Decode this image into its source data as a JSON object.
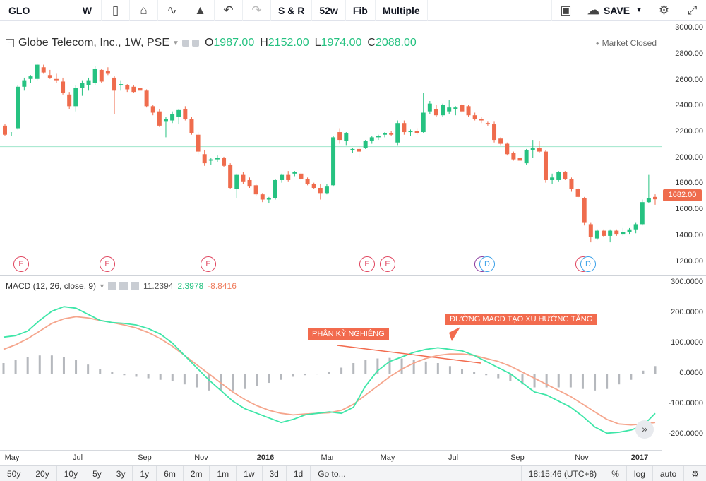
{
  "toolbar": {
    "symbol": "GLO",
    "interval": "W",
    "compare": "S & R",
    "range": "52w",
    "fib": "Fib",
    "multiple": "Multiple",
    "save": "SAVE"
  },
  "legend": {
    "title": "Globe Telecom, Inc., 1W, PSE",
    "o_label": "O",
    "o": "1987.00",
    "h_label": "H",
    "h": "2152.00",
    "l_label": "L",
    "l": "1974.00",
    "c_label": "C",
    "c": "2088.00",
    "status": "Market Closed"
  },
  "price_axis": [
    "3000.00",
    "2800.00",
    "2600.00",
    "2400.00",
    "2200.00",
    "2000.00",
    "1800.00",
    "1600.00",
    "1400.00",
    "1200.00"
  ],
  "last_price": "1682.00",
  "macd": {
    "title": "MACD (12, 26, close, 9)",
    "hist_value": "11.2394",
    "macd_value": "2.3978",
    "signal_value": "-8.8416",
    "axis": [
      "300.0000",
      "200.0000",
      "100.0000",
      "0.0000",
      "-100.0000",
      "-200.0000"
    ]
  },
  "annotations": {
    "divergence": "PHÂN KỲ NGHIÊNG",
    "uptrend": "ĐƯỜNG MACD TẠO XU HƯỚNG TĂNG"
  },
  "time_axis": [
    "May",
    "Jul",
    "Sep",
    "Nov",
    "2016",
    "Mar",
    "May",
    "Jul",
    "Sep",
    "Nov",
    "2017"
  ],
  "events": [
    "E",
    "E",
    "E",
    "E",
    "E",
    "D",
    "D",
    "E",
    "D"
  ],
  "bottom_bar": {
    "ranges": [
      "50y",
      "20y",
      "10y",
      "5y",
      "3y",
      "1y",
      "6m",
      "2m",
      "1m",
      "1w",
      "3d",
      "1d"
    ],
    "goto": "Go to...",
    "time": "18:15:46 (UTC+8)",
    "percent": "%",
    "log": "log",
    "auto": "auto"
  },
  "colors": {
    "up": "#26c281",
    "down": "#ef6c4d",
    "macd_line": "#3ee6a8",
    "signal_line": "#f5a58c",
    "histogram": "#b5b8bd"
  },
  "chart_data": {
    "type": "candlestick",
    "interval": "weekly",
    "x_range": [
      "2015-04",
      "2017-01"
    ],
    "price_ylim": [
      1100,
      3050
    ],
    "candles": [
      {
        "o": 2250,
        "h": 2260,
        "l": 2170,
        "c": 2180
      },
      {
        "o": 2190,
        "h": 2200,
        "l": 2170,
        "c": 2195
      },
      {
        "o": 2230,
        "h": 2560,
        "l": 2220,
        "c": 2550
      },
      {
        "o": 2550,
        "h": 2620,
        "l": 2520,
        "c": 2600
      },
      {
        "o": 2610,
        "h": 2640,
        "l": 2580,
        "c": 2630
      },
      {
        "o": 2610,
        "h": 2730,
        "l": 2600,
        "c": 2720
      },
      {
        "o": 2700,
        "h": 2720,
        "l": 2650,
        "c": 2660
      },
      {
        "o": 2640,
        "h": 2680,
        "l": 2610,
        "c": 2620
      },
      {
        "o": 2610,
        "h": 2650,
        "l": 2580,
        "c": 2600
      },
      {
        "o": 2590,
        "h": 2620,
        "l": 2490,
        "c": 2500
      },
      {
        "o": 2490,
        "h": 2510,
        "l": 2380,
        "c": 2400
      },
      {
        "o": 2400,
        "h": 2560,
        "l": 2360,
        "c": 2540
      },
      {
        "o": 2540,
        "h": 2600,
        "l": 2480,
        "c": 2580
      },
      {
        "o": 2560,
        "h": 2620,
        "l": 2520,
        "c": 2600
      },
      {
        "o": 2580,
        "h": 2710,
        "l": 2560,
        "c": 2690
      },
      {
        "o": 2680,
        "h": 2690,
        "l": 2580,
        "c": 2590
      },
      {
        "o": 2670,
        "h": 2700,
        "l": 2640,
        "c": 2650
      },
      {
        "o": 2620,
        "h": 2630,
        "l": 2340,
        "c": 2520
      },
      {
        "o": 2560,
        "h": 2600,
        "l": 2520,
        "c": 2570
      },
      {
        "o": 2560,
        "h": 2570,
        "l": 2510,
        "c": 2530
      },
      {
        "o": 2550,
        "h": 2560,
        "l": 2500,
        "c": 2510
      },
      {
        "o": 2540,
        "h": 2570,
        "l": 2510,
        "c": 2520
      },
      {
        "o": 2520,
        "h": 2530,
        "l": 2390,
        "c": 2400
      },
      {
        "o": 2400,
        "h": 2410,
        "l": 2330,
        "c": 2350
      },
      {
        "o": 2360,
        "h": 2380,
        "l": 2240,
        "c": 2250
      },
      {
        "o": 2280,
        "h": 2320,
        "l": 2160,
        "c": 2300
      },
      {
        "o": 2290,
        "h": 2360,
        "l": 2270,
        "c": 2340
      },
      {
        "o": 2320,
        "h": 2380,
        "l": 2260,
        "c": 2370
      },
      {
        "o": 2380,
        "h": 2400,
        "l": 2290,
        "c": 2300
      },
      {
        "o": 2300,
        "h": 2320,
        "l": 2180,
        "c": 2190
      },
      {
        "o": 2180,
        "h": 2200,
        "l": 2030,
        "c": 2050
      },
      {
        "o": 2030,
        "h": 2060,
        "l": 1940,
        "c": 1960
      },
      {
        "o": 1980,
        "h": 2000,
        "l": 1950,
        "c": 1990
      },
      {
        "o": 1990,
        "h": 2020,
        "l": 1970,
        "c": 2000
      },
      {
        "o": 2000,
        "h": 2010,
        "l": 1930,
        "c": 1940
      },
      {
        "o": 1950,
        "h": 1960,
        "l": 1760,
        "c": 1770
      },
      {
        "o": 1760,
        "h": 1880,
        "l": 1690,
        "c": 1870
      },
      {
        "o": 1870,
        "h": 1890,
        "l": 1800,
        "c": 1820
      },
      {
        "o": 1830,
        "h": 1850,
        "l": 1770,
        "c": 1780
      },
      {
        "o": 1790,
        "h": 1800,
        "l": 1710,
        "c": 1720
      },
      {
        "o": 1720,
        "h": 1730,
        "l": 1660,
        "c": 1680
      },
      {
        "o": 1680,
        "h": 1700,
        "l": 1650,
        "c": 1690
      },
      {
        "o": 1690,
        "h": 1840,
        "l": 1680,
        "c": 1830
      },
      {
        "o": 1830,
        "h": 1880,
        "l": 1810,
        "c": 1870
      },
      {
        "o": 1870,
        "h": 1900,
        "l": 1820,
        "c": 1830
      },
      {
        "o": 1880,
        "h": 1900,
        "l": 1860,
        "c": 1890
      },
      {
        "o": 1880,
        "h": 1890,
        "l": 1830,
        "c": 1840
      },
      {
        "o": 1840,
        "h": 1850,
        "l": 1790,
        "c": 1800
      },
      {
        "o": 1800,
        "h": 1810,
        "l": 1760,
        "c": 1770
      },
      {
        "o": 1770,
        "h": 1800,
        "l": 1680,
        "c": 1730
      },
      {
        "o": 1730,
        "h": 1800,
        "l": 1720,
        "c": 1780
      },
      {
        "o": 1790,
        "h": 2170,
        "l": 1780,
        "c": 2160
      },
      {
        "o": 2200,
        "h": 2230,
        "l": 2110,
        "c": 2140
      },
      {
        "o": 2130,
        "h": 2200,
        "l": 2100,
        "c": 2190
      },
      {
        "o": 2060,
        "h": 2080,
        "l": 2040,
        "c": 2070
      },
      {
        "o": 2070,
        "h": 2090,
        "l": 2000,
        "c": 2050
      },
      {
        "o": 2080,
        "h": 2140,
        "l": 2070,
        "c": 2130
      },
      {
        "o": 2130,
        "h": 2170,
        "l": 2110,
        "c": 2160
      },
      {
        "o": 2160,
        "h": 2180,
        "l": 2140,
        "c": 2170
      },
      {
        "o": 2180,
        "h": 2200,
        "l": 2160,
        "c": 2190
      },
      {
        "o": 2190,
        "h": 2210,
        "l": 2170,
        "c": 2180
      },
      {
        "o": 2120,
        "h": 2290,
        "l": 2100,
        "c": 2270
      },
      {
        "o": 2270,
        "h": 2290,
        "l": 2180,
        "c": 2200
      },
      {
        "o": 2200,
        "h": 2220,
        "l": 2170,
        "c": 2210
      },
      {
        "o": 2210,
        "h": 2230,
        "l": 2180,
        "c": 2190
      },
      {
        "o": 2200,
        "h": 2500,
        "l": 2190,
        "c": 2350
      },
      {
        "o": 2360,
        "h": 2440,
        "l": 2340,
        "c": 2420
      },
      {
        "o": 2380,
        "h": 2410,
        "l": 2320,
        "c": 2330
      },
      {
        "o": 2330,
        "h": 2420,
        "l": 2320,
        "c": 2410
      },
      {
        "o": 2360,
        "h": 2450,
        "l": 2340,
        "c": 2390
      },
      {
        "o": 2380,
        "h": 2400,
        "l": 2330,
        "c": 2390
      },
      {
        "o": 2410,
        "h": 2420,
        "l": 2350,
        "c": 2360
      },
      {
        "o": 2400,
        "h": 2410,
        "l": 2320,
        "c": 2330
      },
      {
        "o": 2330,
        "h": 2350,
        "l": 2290,
        "c": 2300
      },
      {
        "o": 2300,
        "h": 2320,
        "l": 2270,
        "c": 2290
      },
      {
        "o": 2270,
        "h": 2280,
        "l": 2250,
        "c": 2260
      },
      {
        "o": 2260,
        "h": 2280,
        "l": 2120,
        "c": 2140
      },
      {
        "o": 2150,
        "h": 2160,
        "l": 2100,
        "c": 2110
      },
      {
        "o": 2110,
        "h": 2120,
        "l": 2020,
        "c": 2030
      },
      {
        "o": 2040,
        "h": 2050,
        "l": 1980,
        "c": 1990
      },
      {
        "o": 2000,
        "h": 2010,
        "l": 1960,
        "c": 1980
      },
      {
        "o": 1960,
        "h": 2070,
        "l": 1950,
        "c": 2060
      },
      {
        "o": 2060,
        "h": 2140,
        "l": 2000,
        "c": 2080
      },
      {
        "o": 2080,
        "h": 2130,
        "l": 2040,
        "c": 2050
      },
      {
        "o": 2050,
        "h": 2060,
        "l": 1810,
        "c": 1830
      },
      {
        "o": 1830,
        "h": 1880,
        "l": 1800,
        "c": 1850
      },
      {
        "o": 1830,
        "h": 1900,
        "l": 1820,
        "c": 1890
      },
      {
        "o": 1890,
        "h": 1900,
        "l": 1830,
        "c": 1840
      },
      {
        "o": 1840,
        "h": 1850,
        "l": 1740,
        "c": 1760
      },
      {
        "o": 1760,
        "h": 1770,
        "l": 1690,
        "c": 1700
      },
      {
        "o": 1690,
        "h": 1700,
        "l": 1480,
        "c": 1500
      },
      {
        "o": 1490,
        "h": 1500,
        "l": 1350,
        "c": 1390
      },
      {
        "o": 1380,
        "h": 1450,
        "l": 1370,
        "c": 1440
      },
      {
        "o": 1440,
        "h": 1450,
        "l": 1390,
        "c": 1400
      },
      {
        "o": 1400,
        "h": 1450,
        "l": 1350,
        "c": 1440
      },
      {
        "o": 1440,
        "h": 1450,
        "l": 1400,
        "c": 1410
      },
      {
        "o": 1410,
        "h": 1460,
        "l": 1400,
        "c": 1430
      },
      {
        "o": 1430,
        "h": 1460,
        "l": 1410,
        "c": 1450
      },
      {
        "o": 1450,
        "h": 1500,
        "l": 1420,
        "c": 1490
      },
      {
        "o": 1490,
        "h": 1680,
        "l": 1480,
        "c": 1660
      },
      {
        "o": 1660,
        "h": 1870,
        "l": 1650,
        "c": 1690
      },
      {
        "o": 1700,
        "h": 1720,
        "l": 1640,
        "c": 1682
      }
    ],
    "macd_ylim": [
      -250,
      320
    ],
    "macd_line": [
      120,
      125,
      140,
      175,
      205,
      220,
      215,
      195,
      175,
      168,
      165,
      160,
      148,
      130,
      100,
      60,
      20,
      -20,
      -55,
      -90,
      -115,
      -130,
      -145,
      -160,
      -150,
      -135,
      -130,
      -125,
      -130,
      -110,
      -40,
      10,
      40,
      55,
      70,
      80,
      85,
      80,
      75,
      60,
      40,
      20,
      0,
      -30,
      -60,
      -70,
      -90,
      -110,
      -140,
      -175,
      -195,
      -192,
      -185,
      -170,
      -130
    ],
    "signal_line": [
      80,
      95,
      115,
      140,
      165,
      180,
      187,
      183,
      175,
      168,
      160,
      150,
      135,
      115,
      90,
      60,
      30,
      0,
      -30,
      -60,
      -85,
      -105,
      -120,
      -130,
      -135,
      -132,
      -130,
      -128,
      -120,
      -100,
      -70,
      -40,
      -10,
      15,
      35,
      50,
      60,
      65,
      65,
      60,
      50,
      40,
      25,
      5,
      -15,
      -35,
      -55,
      -75,
      -100,
      -125,
      -150,
      -165,
      -168,
      -165,
      -160
    ],
    "histogram": [
      35,
      45,
      55,
      60,
      60,
      55,
      45,
      30,
      15,
      5,
      -5,
      -10,
      -15,
      -20,
      -25,
      -35,
      -45,
      -55,
      -55,
      -55,
      -50,
      -40,
      -30,
      -20,
      -10,
      -5,
      0,
      5,
      20,
      35,
      45,
      50,
      52,
      50,
      45,
      40,
      35,
      25,
      15,
      5,
      -5,
      -15,
      -25,
      -35,
      -45,
      -45,
      -45,
      -45,
      -50,
      -55,
      -50,
      -35,
      -20,
      10,
      25
    ],
    "xlabel": "",
    "ylabel": ""
  }
}
